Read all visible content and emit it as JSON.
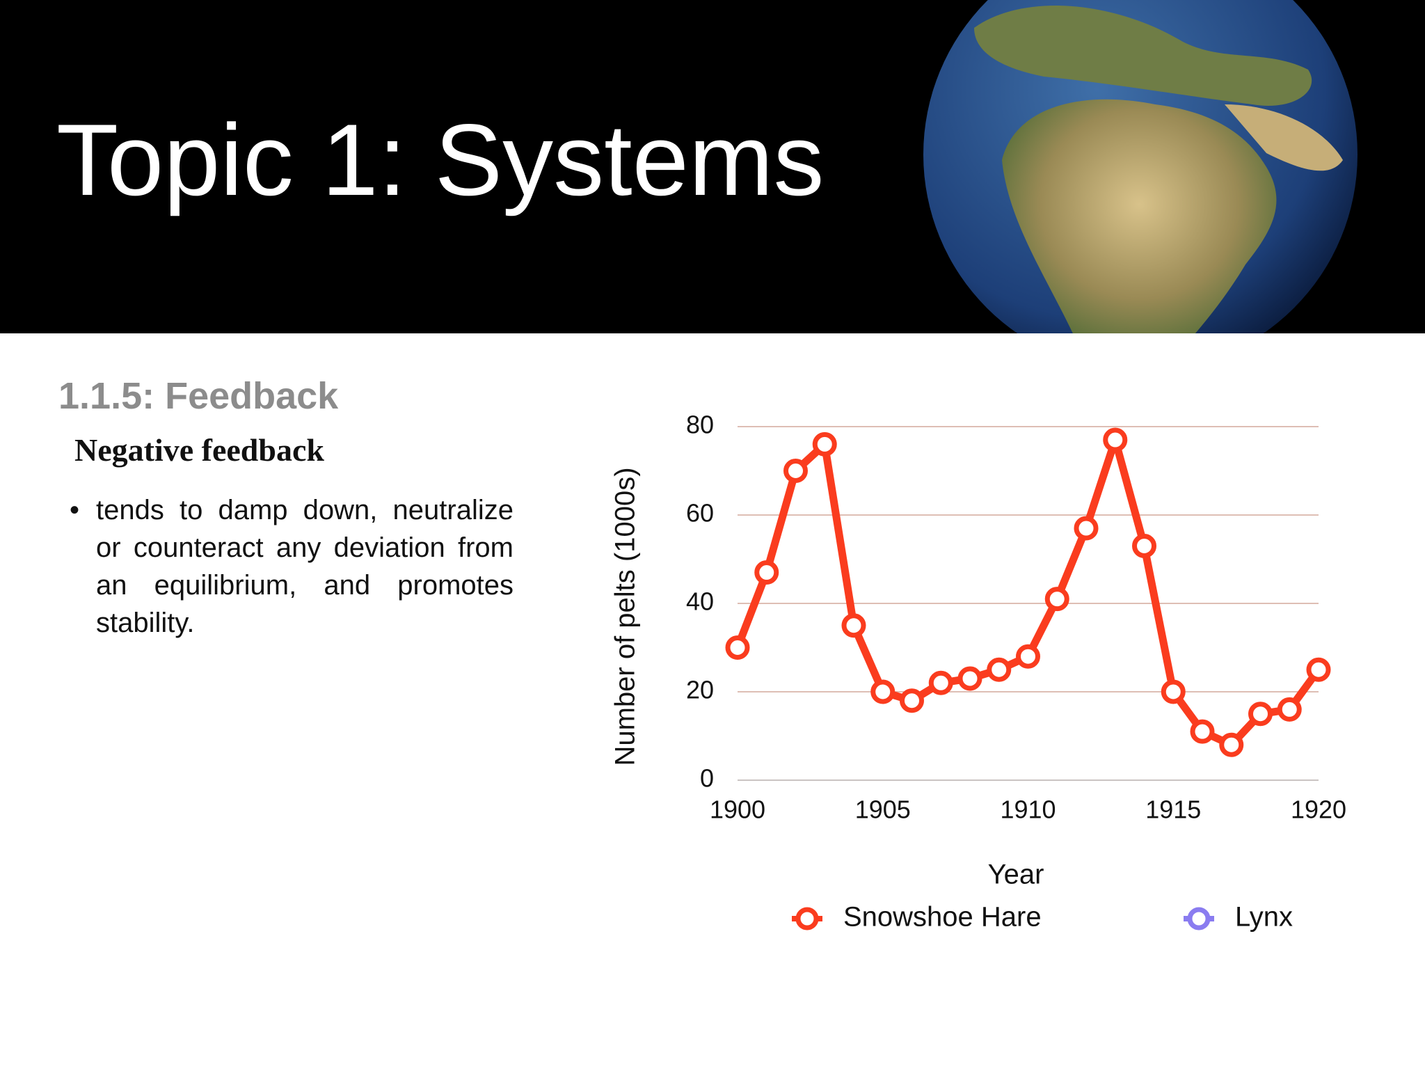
{
  "header": {
    "title": "Topic 1: Systems"
  },
  "section": {
    "heading": "1.1.5: Feedback",
    "subheading": "Negative feedback",
    "bullets": [
      "tends to damp down, neutralize or counteract any deviation from an equilibrium, and promotes stability."
    ]
  },
  "chart_data": {
    "type": "line",
    "x_label": "Year",
    "y_label": "Number of pelts (1000s)",
    "x": [
      1900,
      1901,
      1902,
      1903,
      1904,
      1905,
      1906,
      1907,
      1908,
      1909,
      1910,
      1911,
      1912,
      1913,
      1914,
      1915,
      1916,
      1917,
      1918,
      1919,
      1920
    ],
    "series": [
      {
        "name": "Snowshoe Hare",
        "color": "#fa3c1e",
        "values": [
          30,
          47,
          70,
          76,
          35,
          20,
          18,
          22,
          23,
          25,
          28,
          41,
          57,
          77,
          53,
          20,
          11,
          8,
          15,
          16,
          25
        ]
      },
      {
        "name": "Lynx",
        "color": "#8a7cf0",
        "values": [
          null,
          null,
          null,
          null,
          null,
          null,
          null,
          null,
          null,
          null,
          null,
          null,
          null,
          null,
          null,
          null,
          null,
          null,
          null,
          null,
          null
        ]
      }
    ],
    "xlim": [
      1900,
      1920
    ],
    "xticks": [
      1900,
      1905,
      1910,
      1915,
      1920
    ],
    "ylim": [
      0,
      80
    ],
    "yticks": [
      0,
      20,
      40,
      60,
      80
    ],
    "grid": true,
    "legend": "bottom"
  }
}
